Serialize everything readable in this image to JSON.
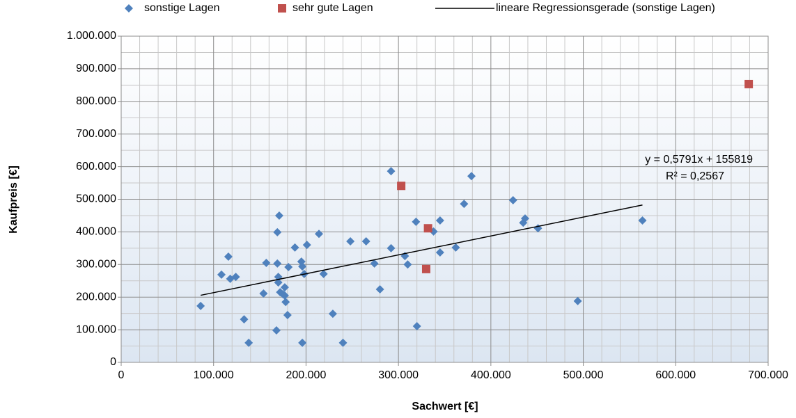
{
  "chart_data": {
    "type": "scatter",
    "xlabel": "Sachwert [€]",
    "ylabel": "Kaufpreis [€]",
    "xlim": [
      0,
      700000
    ],
    "ylim": [
      0,
      1000000
    ],
    "xticks": [
      0,
      {
        "value": 100000,
        "label": "100.000"
      },
      {
        "value": 200000,
        "label": "200.000"
      },
      {
        "value": 300000,
        "label": "300.000"
      },
      {
        "value": 400000,
        "label": "400.000"
      },
      {
        "value": 500000,
        "label": "500.000"
      },
      {
        "value": 600000,
        "label": "600.000"
      },
      {
        "value": 700000,
        "label": "700.000"
      }
    ],
    "yticks": [
      0,
      {
        "value": 100000,
        "label": "100.000"
      },
      {
        "value": 200000,
        "label": "200.000"
      },
      {
        "value": 300000,
        "label": "300.000"
      },
      {
        "value": 400000,
        "label": "400.000"
      },
      {
        "value": 500000,
        "label": "500.000"
      },
      {
        "value": 600000,
        "label": "600.000"
      },
      {
        "value": 700000,
        "label": "700.000"
      },
      {
        "value": 800000,
        "label": "800.000"
      },
      {
        "value": 900000,
        "label": "900.000"
      },
      {
        "value": 1000000,
        "label": "1.000.000"
      }
    ],
    "x_minor_ticks": [
      20000,
      40000,
      60000,
      80000,
      120000,
      140000,
      160000,
      180000,
      220000,
      240000,
      260000,
      280000,
      320000,
      340000,
      360000,
      380000,
      420000,
      440000,
      460000,
      480000,
      520000,
      540000,
      560000,
      580000,
      620000,
      640000,
      660000,
      680000
    ],
    "y_minor_ticks": [
      50000,
      150000,
      250000,
      350000,
      450000,
      550000,
      650000,
      750000,
      850000,
      950000
    ],
    "grid": true,
    "legend": "top",
    "series": [
      {
        "name": "sonstige Lagen",
        "color": "#4f81bd",
        "marker": "diamond",
        "x": [
          86000,
          108500,
          116000,
          118000,
          124000,
          133000,
          138000,
          154000,
          157000,
          168000,
          169000,
          169000,
          171000,
          170000,
          170000,
          172000,
          175000,
          177000,
          177000,
          178000,
          180000,
          181000,
          188000,
          195000,
          196000,
          196000,
          198000,
          201000,
          214000,
          219000,
          229000,
          240000,
          248000,
          265000,
          274000,
          280000,
          292000,
          292000,
          307000,
          310000,
          319000,
          320000,
          338000,
          345000,
          345000,
          362000,
          371000,
          379000,
          424000,
          435000,
          437000,
          451000,
          494000,
          564000
        ],
        "values": [
          173000,
          269000,
          324000,
          256000,
          262000,
          132000,
          60000,
          211000,
          305000,
          98000,
          303000,
          399000,
          450000,
          262000,
          245000,
          215000,
          209000,
          230000,
          205000,
          185000,
          145000,
          292000,
          352000,
          309000,
          294000,
          60000,
          271000,
          360000,
          394000,
          271000,
          149000,
          60000,
          371000,
          371000,
          303000,
          224000,
          586000,
          350000,
          326000,
          300000,
          431000,
          111000,
          401000,
          435000,
          337000,
          352000,
          486000,
          571000,
          497000,
          428000,
          441000,
          411000,
          188000,
          435000
        ]
      },
      {
        "name": "sehr gute Lagen",
        "color": "#c0504d",
        "marker": "square",
        "x": [
          303000,
          332000,
          330000,
          679000
        ],
        "values": [
          541000,
          411000,
          286000,
          853000
        ]
      },
      {
        "name": "lineare Regressionsgerade (sonstige Lagen)",
        "color": "#000000",
        "marker": "line",
        "x": [
          86000,
          564000
        ],
        "values": [
          205600,
          482400
        ]
      }
    ],
    "annotations": [
      "y = 0,5791x + 155819",
      "R² = 0,2567"
    ]
  }
}
